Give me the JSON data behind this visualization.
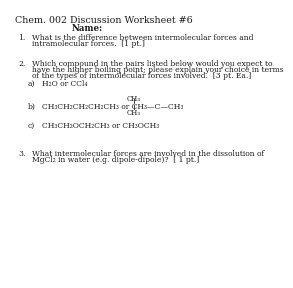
{
  "title": "Chem. 002 Discussion Worksheet #6",
  "name_label": "Name:",
  "q1_num": "1.",
  "q1_text1": "What is the difference between intermolecular forces and",
  "q1_text2": "intramolecular forces.  [1 pt.]",
  "q2_num": "2.",
  "q2_text1": "Which compound in the pairs listed below would you expect to",
  "q2_text2": "have the higher boiling point; please explain your choice in terms",
  "q2_text3": "of the types of intermolecular forces involved.  [3 pt. Ea.]",
  "q2a_label": "a)",
  "q2a_text": "H₂O or CCl₄",
  "q2b_label": "b)",
  "q2b_chain": "CH₃CH₂CH₂CH₂CH₃ or CH₃—C—CH₃",
  "q2b_ch3top": "CH₃",
  "q2b_ch3bot": "CH₃",
  "q2c_label": "c)",
  "q2c_text": "CH₃CH₂OCH₂CH₃ or CH₃OCH₃",
  "q3_num": "3.",
  "q3_text1": "What intermolecular forces are involved in the dissolution of",
  "q3_text2": "MgCl₂ in water (e.g. dipole-dipole)?  [ 1 pt.]",
  "bg_color": "#ffffff",
  "text_color": "#1a1a1a",
  "fontsize_title": 6.8,
  "fontsize_name": 6.2,
  "fontsize_body": 5.5,
  "fontsize_sub": 5.0
}
